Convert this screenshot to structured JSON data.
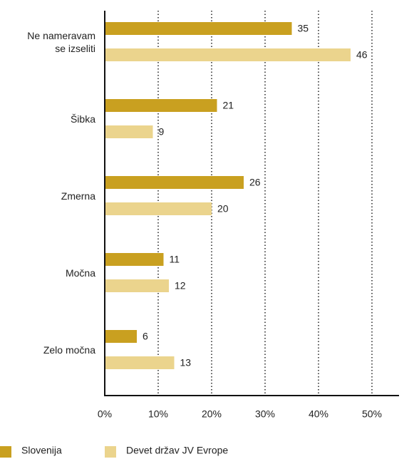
{
  "chart_data": {
    "type": "bar",
    "orientation": "horizontal",
    "categories": [
      "Ne nameravam\nse izseliti",
      "Šibka",
      "Zmerna",
      "Močna",
      "Zelo močna"
    ],
    "series": [
      {
        "name": "Slovenija",
        "color": "#c9a020",
        "values": [
          35,
          21,
          26,
          11,
          6
        ]
      },
      {
        "name": "Devet držav JV Evrope",
        "color": "#ebd48d",
        "values": [
          46,
          9,
          20,
          12,
          13
        ]
      }
    ],
    "xlim": [
      0,
      50
    ],
    "xticks": [
      {
        "value": 0,
        "label": "0%"
      },
      {
        "value": 10,
        "label": "10%"
      },
      {
        "value": 20,
        "label": "20%"
      },
      {
        "value": 30,
        "label": "30%"
      },
      {
        "value": 40,
        "label": "40%"
      },
      {
        "value": 50,
        "label": "50%"
      }
    ],
    "grid": true,
    "grid_style": "dotted",
    "legend": "bottom-left"
  }
}
